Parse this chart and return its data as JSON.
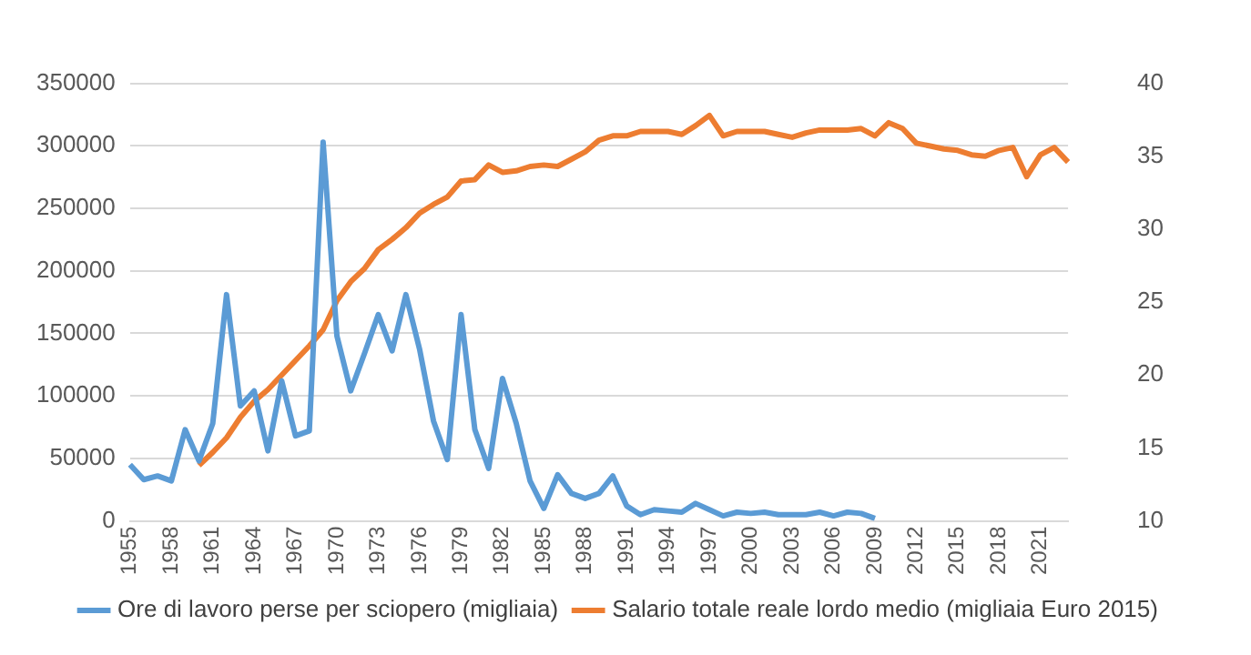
{
  "chart_data": {
    "type": "line",
    "categories": [
      "1955",
      null,
      null,
      "1958",
      null,
      null,
      "1961",
      null,
      null,
      "1964",
      null,
      null,
      "1967",
      null,
      null,
      "1970",
      null,
      null,
      "1973",
      null,
      null,
      "1976",
      null,
      null,
      "1979",
      null,
      null,
      "1982",
      null,
      null,
      "1985",
      null,
      null,
      "1988",
      null,
      null,
      "1991",
      null,
      null,
      "1994",
      null,
      null,
      "1997",
      null,
      null,
      "2000",
      null,
      null,
      "2003",
      null,
      null,
      "2006",
      null,
      null,
      "2009",
      null,
      null,
      "2012",
      null,
      null,
      "2015",
      null,
      null,
      "2018",
      null,
      null,
      "2021",
      null,
      null
    ],
    "series": [
      {
        "name": "Ore di lavoro perse per sciopero (migliaia)",
        "color": "#5b9bd5",
        "values": [
          45000,
          33000,
          36000,
          32000,
          73000,
          48000,
          78000,
          181000,
          92000,
          104000,
          56000,
          112000,
          68000,
          72000,
          303000,
          148000,
          104000,
          134000,
          165000,
          136000,
          181000,
          137000,
          80000,
          49000,
          165000,
          73000,
          42000,
          114000,
          78000,
          32000,
          10000,
          37000,
          22000,
          18000,
          22000,
          36000,
          12000,
          5000,
          9000,
          8000,
          7000,
          14000,
          9000,
          4000,
          7000,
          6000,
          7000,
          5000,
          5000,
          5000,
          7000,
          4000,
          7000,
          6000,
          2000,
          null,
          null,
          null,
          null,
          null,
          null,
          null,
          null,
          null,
          null,
          null,
          null,
          null,
          null
        ]
      },
      {
        "name": "Salario totale reale lordo medio (migliaia Euro 2015)",
        "color": "#ed7d31",
        "axis": "y2",
        "values": [
          null,
          null,
          null,
          null,
          null,
          13.8,
          14.7,
          15.7,
          17.1,
          18.2,
          19.0,
          20.0,
          21.0,
          22.0,
          23.1,
          25.1,
          26.4,
          27.3,
          28.6,
          29.3,
          30.1,
          31.1,
          31.7,
          32.2,
          33.3,
          33.4,
          34.4,
          33.9,
          34.0,
          34.3,
          34.4,
          34.3,
          34.8,
          35.3,
          36.1,
          36.4,
          36.4,
          36.7,
          36.7,
          36.7,
          36.5,
          37.1,
          37.8,
          36.4,
          36.7,
          36.7,
          36.7,
          36.5,
          36.3,
          36.6,
          36.8,
          36.8,
          36.8,
          36.9,
          36.4,
          37.3,
          36.9,
          35.9,
          35.7,
          35.5,
          35.4,
          35.1,
          35.0,
          35.4,
          35.6,
          33.6,
          35.1,
          35.6,
          34.6
        ]
      }
    ],
    "ylim": [
      0,
      350000
    ],
    "yticks": [
      0,
      50000,
      100000,
      150000,
      200000,
      250000,
      300000,
      350000
    ],
    "y2lim": [
      10,
      40
    ],
    "y2ticks": [
      10,
      15,
      20,
      25,
      30,
      35,
      40
    ],
    "grid": "y",
    "legend": "bottom",
    "marker": "none",
    "line_style": "solid"
  }
}
